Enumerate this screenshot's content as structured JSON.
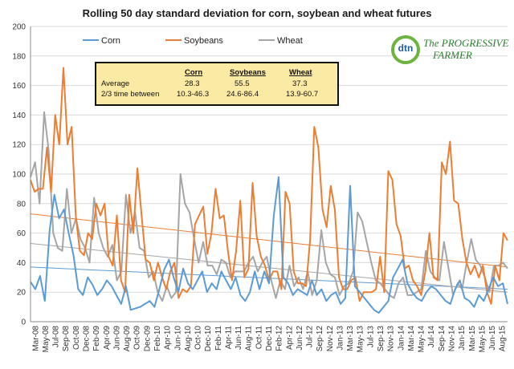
{
  "title": "Rolling 50 day standard deviation for corn, soybean and wheat futures",
  "logo": {
    "mark": "dtn",
    "line1": "The PROGRESSIVE",
    "line2": "FARMER"
  },
  "stats_table": {
    "row_label_header": "",
    "columns": [
      "Corn",
      "Soybeans",
      "Wheat"
    ],
    "rows": [
      {
        "label": "Average",
        "values": [
          "28.3",
          "55.5",
          "37.3"
        ]
      },
      {
        "label": "2/3 time between",
        "values": [
          "10.3-46.3",
          "24.6-86.4",
          "13.9-60.7"
        ]
      }
    ]
  },
  "colors": {
    "corn": "#5b9bd5",
    "soybeans": "#ed7d31",
    "wheat": "#a5a5a5",
    "grid": "#d9d9d9"
  },
  "chart_data": {
    "type": "line",
    "title": "Rolling 50 day standard deviation for corn, soybean and wheat futures",
    "xlabel": "",
    "ylabel": "",
    "ylim": [
      0,
      200
    ],
    "yticks": [
      0,
      20,
      40,
      60,
      80,
      100,
      120,
      140,
      160,
      180,
      200
    ],
    "grid": true,
    "legend": "top",
    "x_tick_labels": [
      "Mar-08",
      "May-08",
      "Jul-08",
      "Sep-08",
      "Oct-08",
      "Dec-08",
      "Feb-09",
      "Apr-09",
      "Jun-09",
      "Aug-09",
      "Oct-09",
      "Dec-09",
      "Feb-10",
      "Apr-10",
      "Jun-10",
      "Aug-10",
      "Oct-10",
      "Dec-10",
      "Feb-11",
      "Apr-11",
      "Jun-11",
      "Aug-11",
      "Oct-11",
      "Dec-11",
      "Feb-12",
      "Apr-12",
      "Jun-12",
      "Jul-12",
      "Sep-12",
      "Nov-12",
      "Jan-13",
      "Mar-13",
      "May-13",
      "Jul-13",
      "Sep-13",
      "Nov-13",
      "Jan-14",
      "Mar-14",
      "May-14",
      "Jul-14",
      "Sep-14",
      "Nov-14",
      "Jan-15",
      "Mar-15",
      "May-15",
      "Jun-15",
      "Aug-15"
    ],
    "series": [
      {
        "name": "Corn",
        "values": [
          27,
          22,
          31,
          14,
          62,
          86,
          70,
          76,
          60,
          45,
          22,
          18,
          30,
          25,
          18,
          22,
          28,
          24,
          18,
          12,
          24,
          8,
          9,
          10,
          12,
          14,
          10,
          22,
          35,
          42,
          30,
          20,
          36,
          26,
          22,
          28,
          34,
          20,
          26,
          22,
          34,
          28,
          22,
          30,
          18,
          14,
          20,
          34,
          22,
          34,
          26,
          72,
          98,
          30,
          26,
          18,
          22,
          20,
          18,
          28,
          18,
          22,
          14,
          18,
          20,
          12,
          16,
          92,
          24,
          20,
          16,
          12,
          8,
          6,
          10,
          14,
          30,
          36,
          42,
          26,
          20,
          16,
          14,
          20,
          24,
          22,
          18,
          14,
          12,
          22,
          28,
          16,
          14,
          10,
          18,
          14,
          22,
          30,
          24,
          26,
          12
        ]
      },
      {
        "name": "Soybeans",
        "values": [
          96,
          88,
          90,
          90,
          118,
          88,
          140,
          120,
          172,
          120,
          132,
          72,
          48,
          45,
          60,
          56,
          80,
          72,
          80,
          44,
          38,
          72,
          28,
          20,
          86,
          60,
          104,
          72,
          42,
          40,
          28,
          40,
          30,
          22,
          34,
          40,
          16,
          22,
          20,
          24,
          66,
          72,
          78,
          46,
          60,
          90,
          70,
          72,
          48,
          28,
          48,
          82,
          30,
          36,
          94,
          58,
          44,
          38,
          28,
          34,
          34,
          22,
          88,
          80,
          34,
          26,
          26,
          24,
          56,
          132,
          118,
          76,
          64,
          92,
          76,
          30,
          22,
          22,
          28,
          30,
          14,
          20,
          20,
          20,
          22,
          44,
          20,
          102,
          96,
          66,
          58,
          36,
          38,
          28,
          24,
          18,
          34,
          60,
          30,
          28,
          108,
          100,
          122,
          82,
          80,
          56,
          40,
          32,
          38,
          30,
          38,
          20,
          12,
          38,
          28,
          60,
          55
        ]
      },
      {
        "name": "Wheat",
        "values": [
          98,
          108,
          80,
          142,
          116,
          60,
          50,
          48,
          90,
          60,
          70,
          56,
          50,
          40,
          84,
          60,
          50,
          44,
          52,
          28,
          34,
          86,
          60,
          74,
          50,
          48,
          30,
          34,
          20,
          14,
          24,
          16,
          20,
          100,
          80,
          74,
          56,
          40,
          54,
          38,
          38,
          32,
          42,
          40,
          30,
          34,
          34,
          34,
          40,
          44,
          34,
          40,
          44,
          28,
          16,
          28,
          22,
          38,
          24,
          30,
          22,
          34,
          18,
          28,
          62,
          40,
          32,
          30,
          18,
          24,
          26,
          34,
          74,
          68,
          54,
          40,
          28,
          26,
          22,
          18,
          16,
          26,
          30,
          18,
          18,
          20,
          22,
          48,
          34,
          30,
          28,
          54,
          36,
          18,
          26,
          22,
          40,
          56,
          42,
          38,
          30,
          20,
          38,
          38,
          40,
          36
        ]
      }
    ],
    "trendlines": [
      {
        "series": "Corn",
        "start": 37,
        "end": 22
      },
      {
        "series": "Soybeans",
        "start": 73,
        "end": 37
      },
      {
        "series": "Wheat",
        "start": 53,
        "end": 20
      }
    ]
  }
}
